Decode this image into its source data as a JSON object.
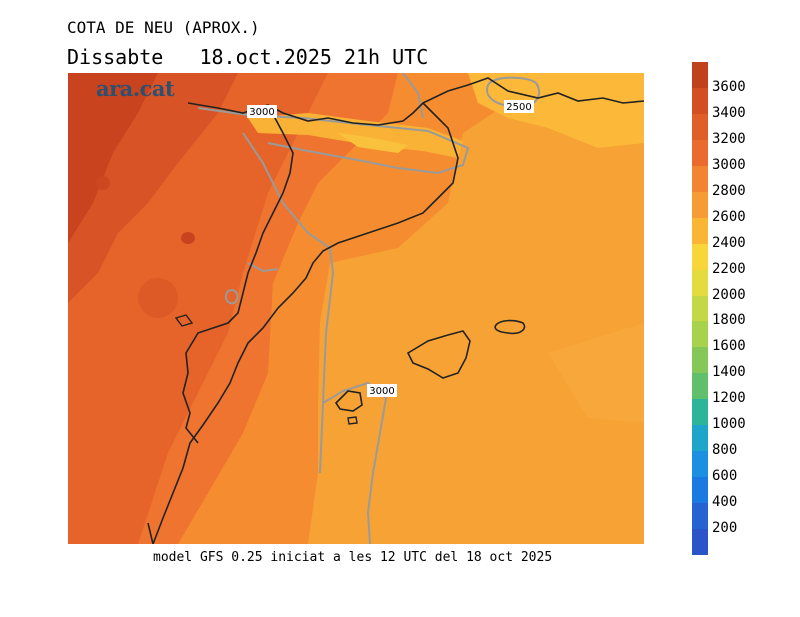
{
  "title": "COTA DE NEU (APROX.)",
  "subtitle": "Dissabte   18.oct.2025 21h UTC",
  "logo": "ara.cat",
  "caption": "model GFS 0.25 iniciat a les 12 UTC del 18 oct 2025",
  "contour_labels": [
    {
      "text": "3000"
    },
    {
      "text": "2500"
    },
    {
      "text": "3000"
    }
  ],
  "colorbar": {
    "ticks": [
      "3600",
      "3400",
      "3200",
      "3000",
      "2800",
      "2600",
      "2400",
      "2200",
      "2000",
      "1800",
      "1600",
      "1400",
      "1200",
      "1000",
      "800",
      "600",
      "400",
      "200"
    ],
    "colors": [
      "#c2411d",
      "#d34f22",
      "#e05e28",
      "#ea6b2d",
      "#f28433",
      "#f79b34",
      "#fab535",
      "#f8d539",
      "#e4db3e",
      "#c3d844",
      "#a7d24b",
      "#86c857",
      "#5fbf6b",
      "#2cb59b",
      "#1da6c9",
      "#1b8fe0",
      "#1b79e2",
      "#2562d2",
      "#2b54c8"
    ]
  }
}
